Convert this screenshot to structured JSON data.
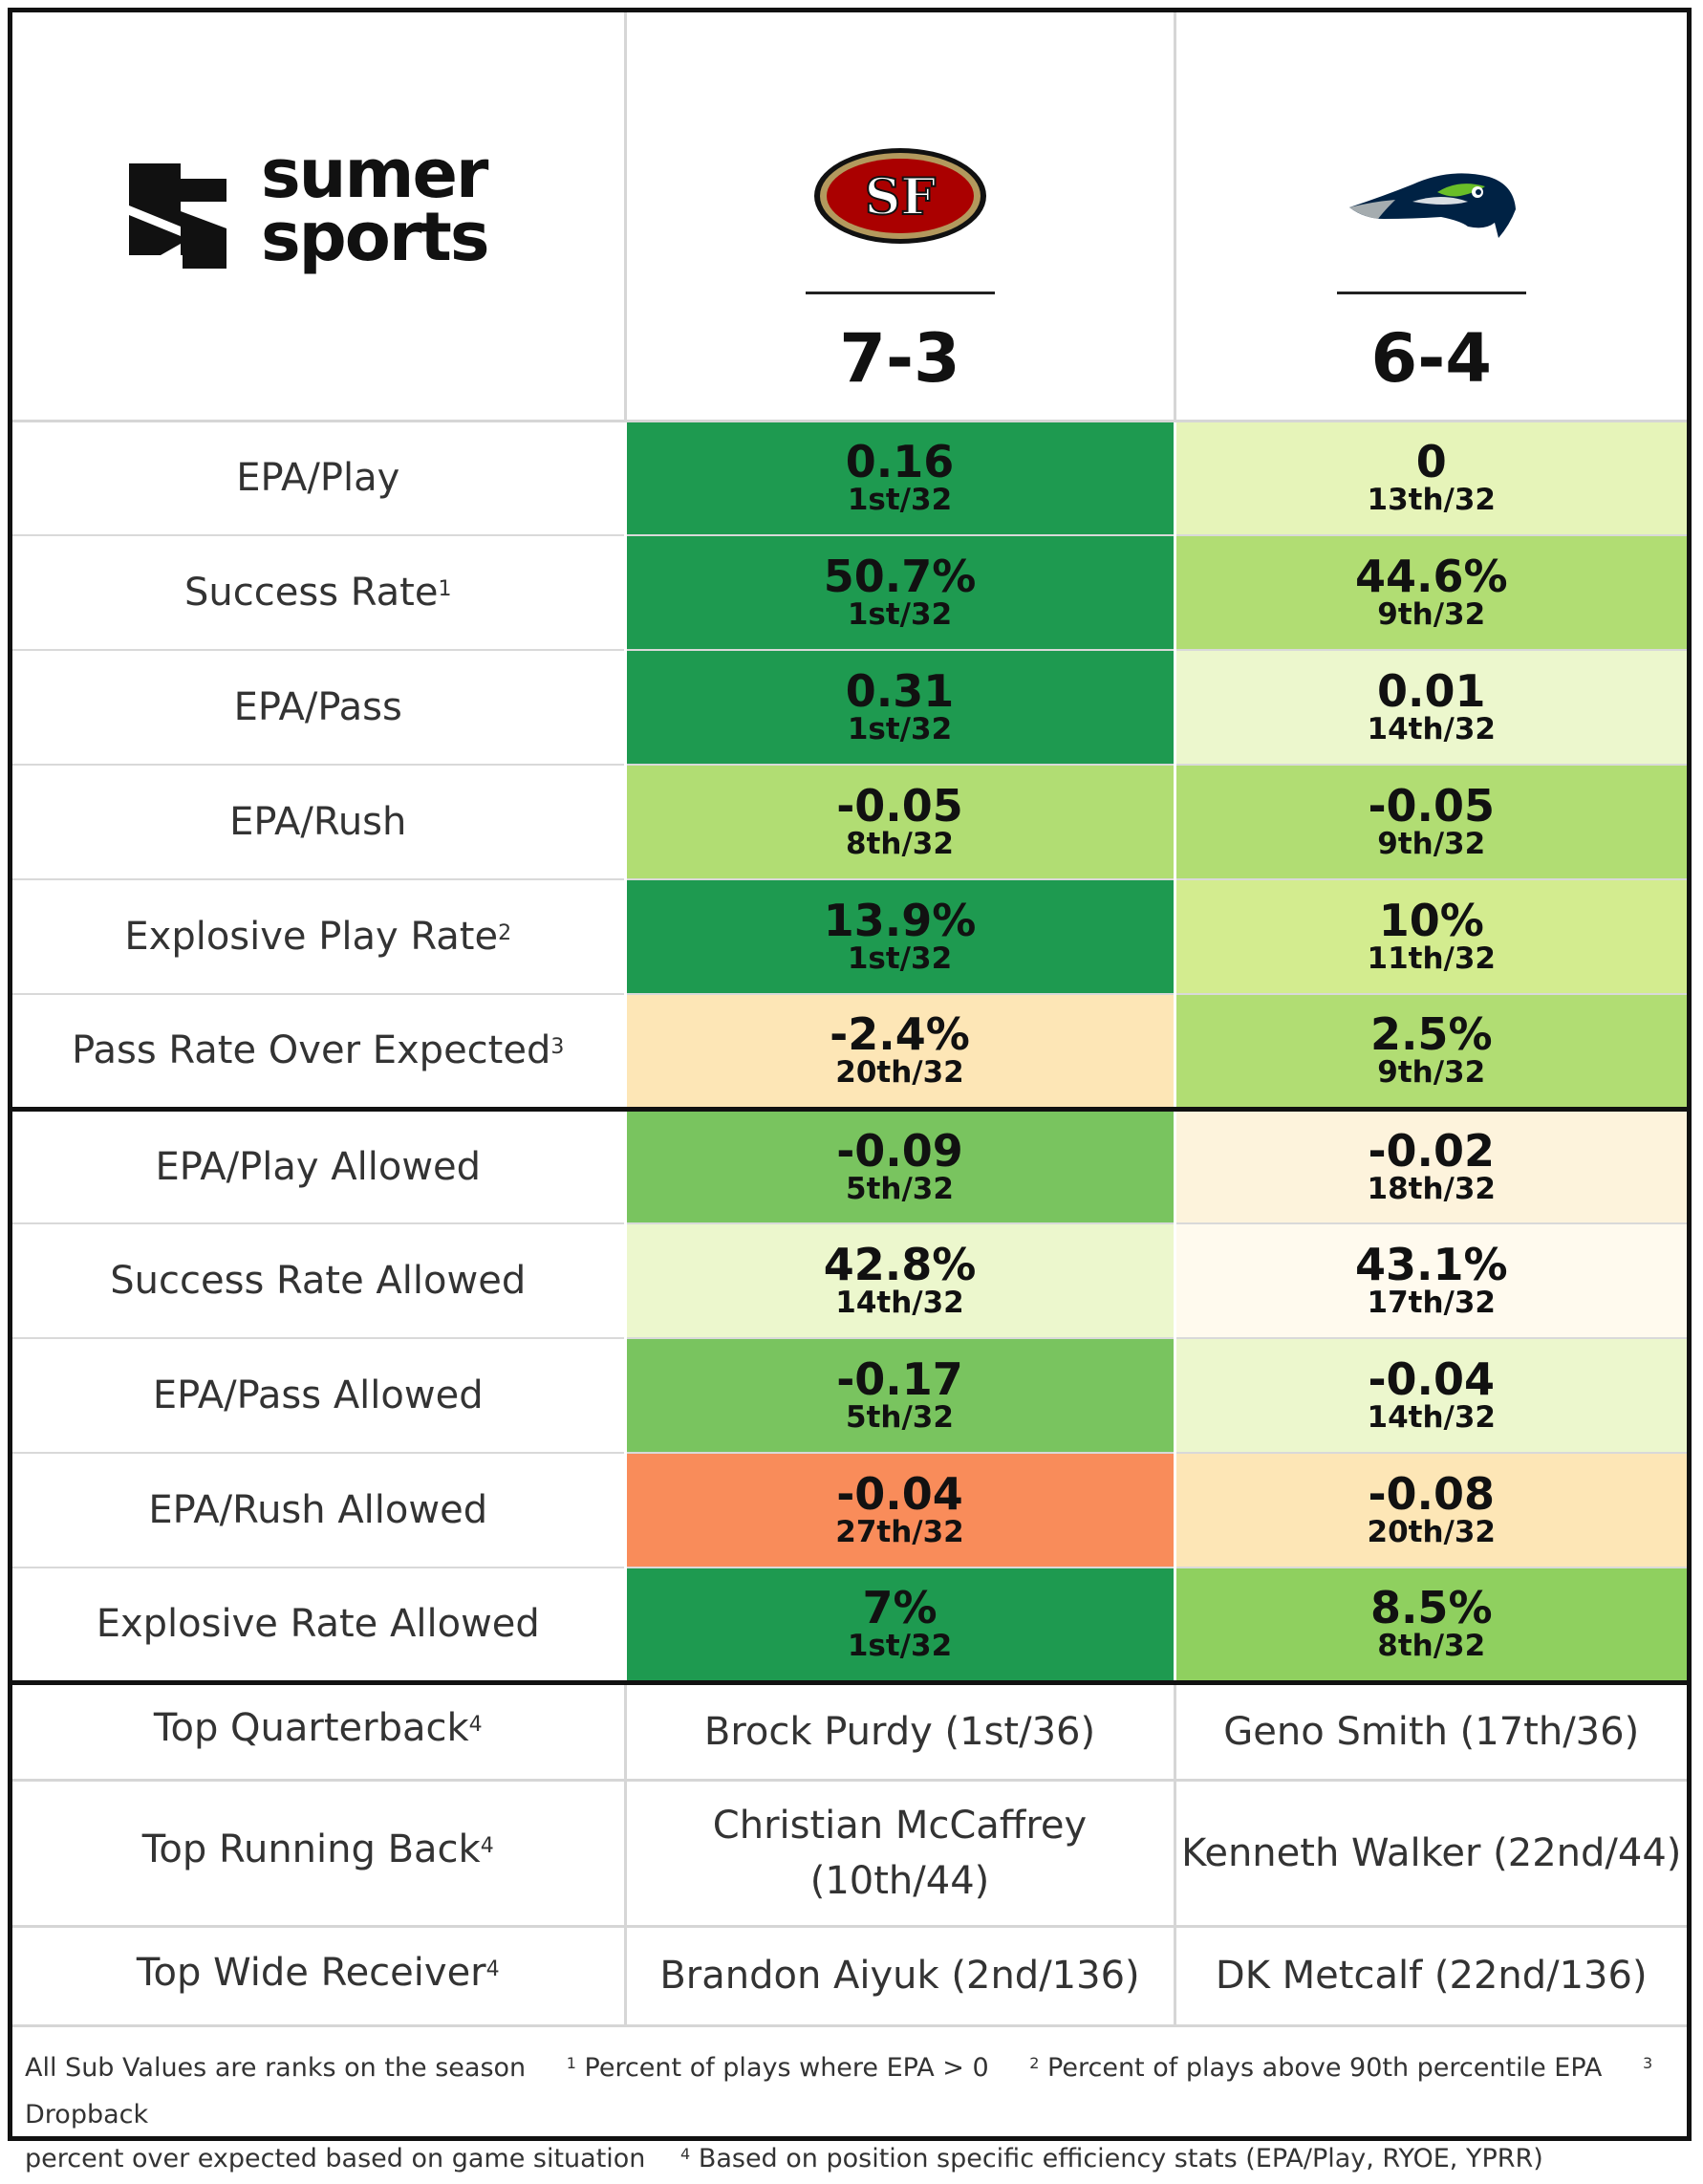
{
  "brand": {
    "line1": "sumer",
    "line2": "sports"
  },
  "teams": [
    {
      "id": "sf",
      "logo_text": "SF",
      "record": "7-3",
      "logo_colors": {
        "primary": "#aa0000",
        "secondary": "#b3995d",
        "outline": "#111111"
      }
    },
    {
      "id": "sea",
      "logo_icon": "seahawk-icon",
      "record": "6-4",
      "logo_colors": {
        "primary": "#002244",
        "secondary": "#69be28",
        "accent": "#a5acaf"
      }
    }
  ],
  "stats": [
    {
      "label": "EPA/Play",
      "footnote": "",
      "sf": {
        "value": "0.16",
        "rank": "1st/32",
        "color": "#1e9a50"
      },
      "sea": {
        "value": "0",
        "rank": "13th/32",
        "color": "#e6f4b9"
      }
    },
    {
      "label": "Success Rate",
      "footnote": "1",
      "sf": {
        "value": "50.7%",
        "rank": "1st/32",
        "color": "#1e9a50"
      },
      "sea": {
        "value": "44.6%",
        "rank": "9th/32",
        "color": "#b1dd73"
      }
    },
    {
      "label": "EPA/Pass",
      "footnote": "",
      "sf": {
        "value": "0.31",
        "rank": "1st/32",
        "color": "#1e9a50"
      },
      "sea": {
        "value": "0.01",
        "rank": "14th/32",
        "color": "#ecf7cd"
      }
    },
    {
      "label": "EPA/Rush",
      "footnote": "",
      "sf": {
        "value": "-0.05",
        "rank": "8th/32",
        "color": "#b1dd73"
      },
      "sea": {
        "value": "-0.05",
        "rank": "9th/32",
        "color": "#b1dd73"
      }
    },
    {
      "label": "Explosive Play Rate",
      "footnote": "2",
      "sf": {
        "value": "13.9%",
        "rank": "1st/32",
        "color": "#1e9a50"
      },
      "sea": {
        "value": "10%",
        "rank": "11th/32",
        "color": "#d3ec8f"
      }
    },
    {
      "label": "Pass Rate Over Expected",
      "footnote": "3",
      "sf": {
        "value": "-2.4%",
        "rank": "20th/32",
        "color": "#fde6b6"
      },
      "sea": {
        "value": "2.5%",
        "rank": "9th/32",
        "color": "#b1dd73"
      }
    },
    {
      "label": "EPA/Play Allowed",
      "footnote": "",
      "sf": {
        "value": "-0.09",
        "rank": "5th/32",
        "color": "#79c45f"
      },
      "sea": {
        "value": "-0.02",
        "rank": "18th/32",
        "color": "#fdf3dc"
      }
    },
    {
      "label": "Success Rate Allowed",
      "footnote": "",
      "sf": {
        "value": "42.8%",
        "rank": "14th/32",
        "color": "#ecf7cd"
      },
      "sea": {
        "value": "43.1%",
        "rank": "17th/32",
        "color": "#fffaee"
      }
    },
    {
      "label": "EPA/Pass Allowed",
      "footnote": "",
      "sf": {
        "value": "-0.17",
        "rank": "5th/32",
        "color": "#79c45f"
      },
      "sea": {
        "value": "-0.04",
        "rank": "14th/32",
        "color": "#ecf7cd"
      }
    },
    {
      "label": "EPA/Rush Allowed",
      "footnote": "",
      "sf": {
        "value": "-0.04",
        "rank": "27th/32",
        "color": "#f98c5a"
      },
      "sea": {
        "value": "-0.08",
        "rank": "20th/32",
        "color": "#fde6b6"
      }
    },
    {
      "label": "Explosive Rate Allowed",
      "footnote": "",
      "sf": {
        "value": "7%",
        "rank": "1st/32",
        "color": "#1e9a50"
      },
      "sea": {
        "value": "8.5%",
        "rank": "8th/32",
        "color": "#8fd05f"
      }
    }
  ],
  "players": [
    {
      "label": "Top Quarterback",
      "footnote": "4",
      "sf": "Brock Purdy (1st/36)",
      "sea": "Geno Smith (17th/36)"
    },
    {
      "label": "Top Running Back",
      "footnote": "4",
      "sf_line1": "Christian McCaffrey",
      "sf_line2": "(10th/44)",
      "sea": "Kenneth Walker (22nd/44)"
    },
    {
      "label": "Top Wide Receiver",
      "footnote": "4",
      "sf": "Brandon Aiyuk (2nd/136)",
      "sea": "DK Metcalf (22nd/136)"
    }
  ],
  "footer": {
    "note": "All Sub Values are ranks on the season",
    "fn1_mark": "1",
    "fn1": "Percent of plays where EPA > 0",
    "fn2_mark": "2",
    "fn2": "Percent of plays above 90th percentile EPA",
    "fn3_mark": "3",
    "fn3a": "Dropback",
    "fn3b": "percent over expected based on game situation",
    "fn4_mark": "4",
    "fn4": "Based on position specific efficiency stats (EPA/Play, RYOE, YPRR)"
  }
}
